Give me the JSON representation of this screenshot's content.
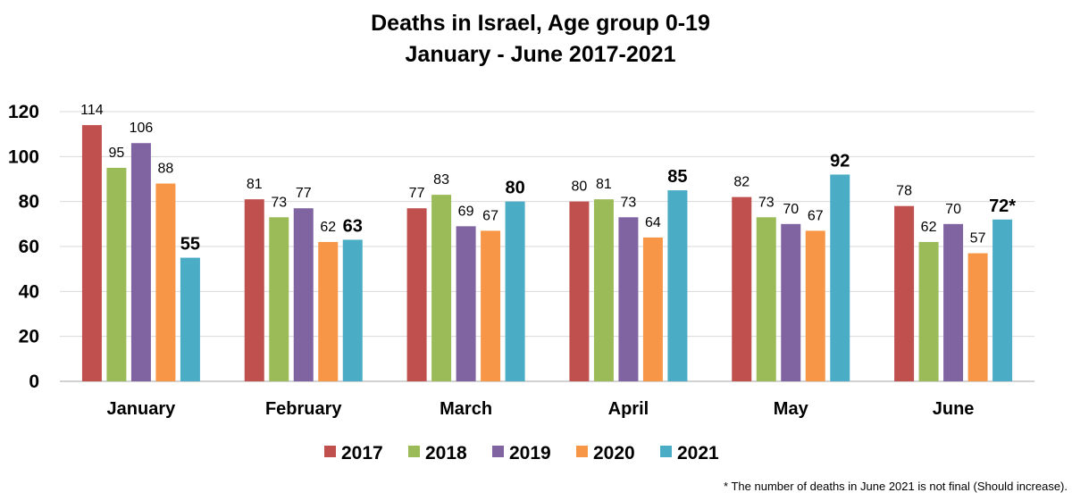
{
  "chart_data": {
    "type": "bar",
    "title": "Deaths in Israel, Age group 0-19",
    "subtitle": "January - June  2017-2021",
    "categories": [
      "January",
      "February",
      "March",
      "April",
      "May",
      "June"
    ],
    "series": [
      {
        "name": "2017",
        "color": "#c0504d",
        "values": [
          114,
          81,
          77,
          80,
          82,
          78
        ]
      },
      {
        "name": "2018",
        "color": "#9bbb59",
        "values": [
          95,
          73,
          83,
          81,
          73,
          62
        ]
      },
      {
        "name": "2019",
        "color": "#8064a2",
        "values": [
          106,
          77,
          69,
          73,
          70,
          70
        ]
      },
      {
        "name": "2020",
        "color": "#f79646",
        "values": [
          88,
          62,
          67,
          64,
          67,
          57
        ]
      },
      {
        "name": "2021",
        "color": "#4bacc6",
        "values": [
          55,
          63,
          80,
          85,
          92,
          72
        ]
      }
    ],
    "highlight_series": "2021",
    "value_labels": [
      [
        "114",
        "81",
        "77",
        "80",
        "82",
        "78"
      ],
      [
        "95",
        "73",
        "83",
        "81",
        "73",
        "62"
      ],
      [
        "106",
        "77",
        "69",
        "73",
        "70",
        "70"
      ],
      [
        "88",
        "62",
        "67",
        "64",
        "67",
        "57"
      ],
      [
        "55",
        "63",
        "80",
        "85",
        "92",
        "72*"
      ]
    ],
    "yticks": [
      0,
      20,
      40,
      60,
      80,
      100,
      120
    ],
    "ylim": [
      0,
      120
    ],
    "grid": true,
    "legend_position": "bottom",
    "xlabel": "",
    "ylabel": ""
  },
  "footnote": "* The number of deaths in June 2021 is not final (Should increase)."
}
